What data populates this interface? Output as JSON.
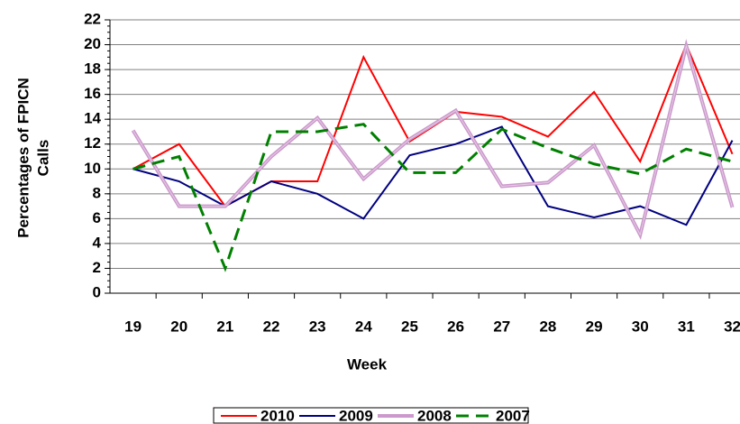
{
  "chart_data": {
    "type": "line",
    "x_label": "Week",
    "y_label": [
      "Percentages of FPICN",
      "Calls"
    ],
    "categories": [
      "19",
      "20",
      "21",
      "22",
      "23",
      "24",
      "25",
      "26",
      "27",
      "28",
      "29",
      "30",
      "31",
      "32"
    ],
    "series": [
      {
        "name": "2010",
        "color": "#ff0000",
        "dash": "solid",
        "values": [
          10,
          12,
          7,
          9,
          9,
          19,
          12.2,
          14.6,
          14.2,
          12.6,
          16.2,
          10.6,
          20,
          11.2
        ]
      },
      {
        "name": "2009",
        "color": "#000080",
        "dash": "solid",
        "values": [
          10,
          9,
          7,
          9,
          8,
          6,
          11.1,
          12,
          13.4,
          7,
          6.1,
          7,
          5.5,
          12.3
        ]
      },
      {
        "name": "2008",
        "color": "#cc99cc",
        "dash": "double",
        "values": [
          13.1,
          7,
          7,
          11,
          14.1,
          9.2,
          12.4,
          14.7,
          8.6,
          8.9,
          11.9,
          4.7,
          19.9,
          6.9
        ]
      },
      {
        "name": "2007",
        "color": "#008000",
        "dash": "dashed",
        "values": [
          10,
          11,
          2,
          13,
          13,
          13.6,
          9.7,
          9.7,
          13.2,
          11.7,
          10.4,
          9.6,
          11.6,
          10.6
        ]
      }
    ],
    "ylim": [
      0,
      22
    ],
    "yticks": [
      0,
      2,
      4,
      6,
      8,
      10,
      12,
      14,
      16,
      18,
      20,
      22
    ],
    "grid": true,
    "legend": "bottom"
  }
}
